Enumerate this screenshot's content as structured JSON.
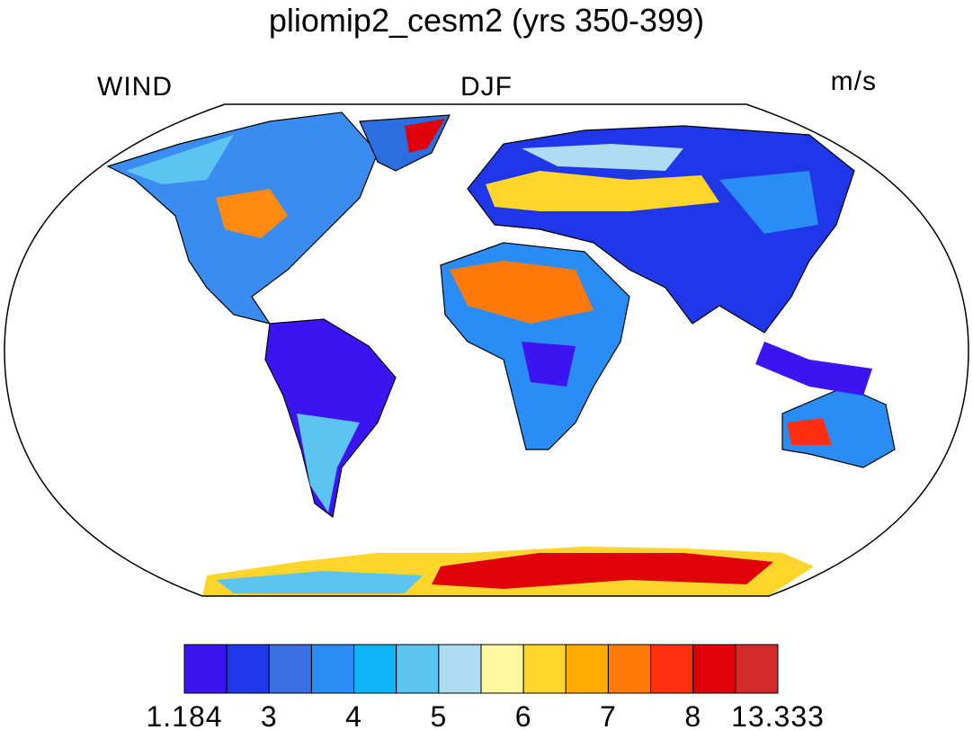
{
  "title": "pliomip2_cesm2 (yrs 350-399)",
  "left_label": "WIND",
  "center_label": "DJF",
  "right_label": "m/s",
  "colorbar": {
    "colors": [
      "#3c14f2",
      "#1f37e8",
      "#3b6ee0",
      "#2a8cf5",
      "#0fb3f7",
      "#5cc4f0",
      "#aedcf2",
      "#fff8a0",
      "#fed52b",
      "#ffab00",
      "#ff7a0a",
      "#ff300f",
      "#e0000a",
      "#d42a2a"
    ],
    "labels": [
      "1.184",
      "3",
      "4",
      "5",
      "6",
      "7",
      "8",
      "13.333"
    ]
  }
}
